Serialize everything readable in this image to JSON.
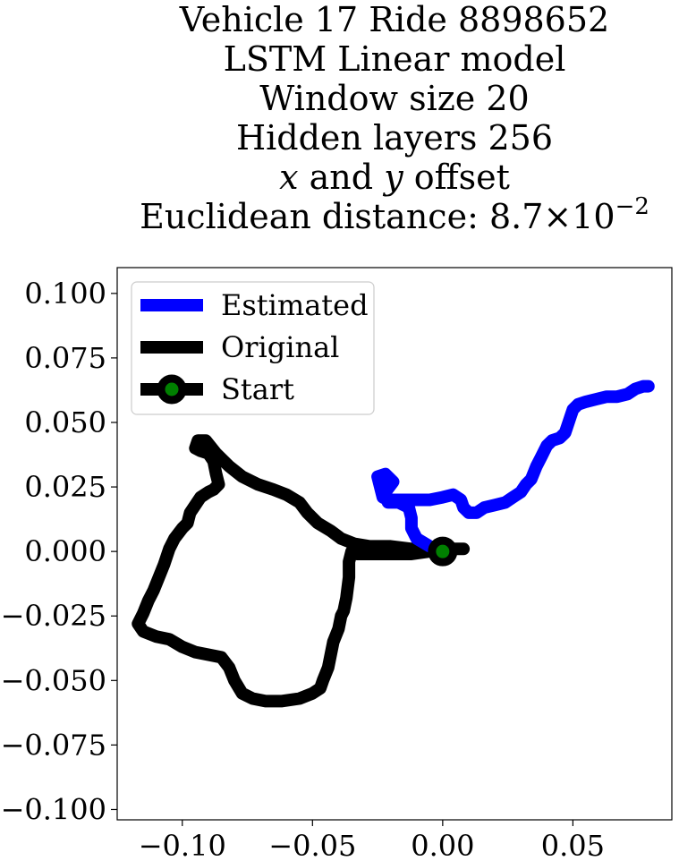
{
  "chart_data": {
    "type": "line",
    "title_lines": {
      "line1": "Vehicle 17 Ride 8898652",
      "line2": "LSTM Linear model",
      "line3": "Window size 20",
      "line4": "Hidden layers 256",
      "line5_x": "x",
      "line5_and": " and ",
      "line5_y": "y",
      "line5_rest": " offset",
      "line6_prefix": "Euclidean distance: 8.7×10",
      "line6_exp": "−2"
    },
    "xlim": [
      -0.125,
      0.088
    ],
    "ylim": [
      -0.104,
      0.11
    ],
    "grid": false,
    "legend_placement": "top-left",
    "x_ticks": [
      -0.1,
      -0.05,
      0.0,
      0.05
    ],
    "x_tick_labels": [
      "−0.10",
      "−0.05",
      "0.00",
      "0.05"
    ],
    "y_ticks": [
      0.1,
      0.075,
      0.05,
      0.025,
      0.0,
      -0.025,
      -0.05,
      -0.075,
      -0.1
    ],
    "y_tick_labels": [
      "0.100",
      "0.075",
      "0.050",
      "0.025",
      "0.000",
      "−0.025",
      "−0.050",
      "−0.075",
      "−0.100"
    ],
    "series": [
      {
        "name": "Estimated",
        "color": "#0000ff",
        "points": [
          [
            0.0,
            0.0
          ],
          [
            -0.005,
            0.002
          ],
          [
            -0.01,
            0.005
          ],
          [
            -0.012,
            0.009
          ],
          [
            -0.012,
            0.013
          ],
          [
            -0.013,
            0.017
          ],
          [
            -0.017,
            0.019
          ],
          [
            -0.021,
            0.019
          ],
          [
            -0.022,
            0.023
          ],
          [
            -0.019,
            0.027
          ],
          [
            -0.022,
            0.03
          ],
          [
            -0.025,
            0.029
          ],
          [
            -0.024,
            0.025
          ],
          [
            -0.023,
            0.021
          ],
          [
            -0.021,
            0.02
          ],
          [
            -0.016,
            0.02
          ],
          [
            -0.01,
            0.02
          ],
          [
            -0.005,
            0.02
          ],
          [
            0.0,
            0.021
          ],
          [
            0.004,
            0.022
          ],
          [
            0.007,
            0.02
          ],
          [
            0.008,
            0.017
          ],
          [
            0.01,
            0.015
          ],
          [
            0.013,
            0.015
          ],
          [
            0.016,
            0.017
          ],
          [
            0.02,
            0.018
          ],
          [
            0.024,
            0.019
          ],
          [
            0.027,
            0.021
          ],
          [
            0.03,
            0.023
          ],
          [
            0.032,
            0.026
          ],
          [
            0.034,
            0.028
          ],
          [
            0.036,
            0.033
          ],
          [
            0.038,
            0.037
          ],
          [
            0.04,
            0.041
          ],
          [
            0.042,
            0.043
          ],
          [
            0.045,
            0.044
          ],
          [
            0.047,
            0.046
          ],
          [
            0.048,
            0.049
          ],
          [
            0.049,
            0.052
          ],
          [
            0.05,
            0.055
          ],
          [
            0.052,
            0.057
          ],
          [
            0.055,
            0.058
          ],
          [
            0.059,
            0.059
          ],
          [
            0.063,
            0.06
          ],
          [
            0.067,
            0.06
          ],
          [
            0.071,
            0.061
          ],
          [
            0.074,
            0.063
          ],
          [
            0.077,
            0.064
          ],
          [
            0.079,
            0.064
          ]
        ]
      },
      {
        "name": "Original",
        "color": "#000000",
        "points": [
          [
            0.008,
            0.001
          ],
          [
            0.002,
            0.001
          ],
          [
            -0.005,
            0.0
          ],
          [
            -0.012,
            -0.001
          ],
          [
            -0.02,
            -0.001
          ],
          [
            -0.027,
            -0.001
          ],
          [
            -0.033,
            -0.001
          ],
          [
            -0.035,
            0.0
          ],
          [
            -0.036,
            -0.004
          ],
          [
            -0.036,
            -0.01
          ],
          [
            -0.037,
            -0.018
          ],
          [
            -0.038,
            -0.023
          ],
          [
            -0.039,
            -0.025
          ],
          [
            -0.04,
            -0.03
          ],
          [
            -0.042,
            -0.035
          ],
          [
            -0.043,
            -0.04
          ],
          [
            -0.044,
            -0.045
          ],
          [
            -0.046,
            -0.05
          ],
          [
            -0.047,
            -0.053
          ],
          [
            -0.05,
            -0.055
          ],
          [
            -0.055,
            -0.057
          ],
          [
            -0.062,
            -0.058
          ],
          [
            -0.068,
            -0.058
          ],
          [
            -0.073,
            -0.057
          ],
          [
            -0.077,
            -0.055
          ],
          [
            -0.08,
            -0.05
          ],
          [
            -0.082,
            -0.045
          ],
          [
            -0.085,
            -0.041
          ],
          [
            -0.09,
            -0.04
          ],
          [
            -0.095,
            -0.039
          ],
          [
            -0.1,
            -0.037
          ],
          [
            -0.105,
            -0.034
          ],
          [
            -0.11,
            -0.033
          ],
          [
            -0.115,
            -0.031
          ],
          [
            -0.117,
            -0.028
          ],
          [
            -0.115,
            -0.024
          ],
          [
            -0.113,
            -0.019
          ],
          [
            -0.111,
            -0.015
          ],
          [
            -0.109,
            -0.01
          ],
          [
            -0.107,
            -0.005
          ],
          [
            -0.105,
            0.001
          ],
          [
            -0.103,
            0.005
          ],
          [
            -0.1,
            0.009
          ],
          [
            -0.098,
            0.011
          ],
          [
            -0.097,
            0.015
          ],
          [
            -0.095,
            0.018
          ],
          [
            -0.093,
            0.021
          ],
          [
            -0.09,
            0.023
          ],
          [
            -0.088,
            0.024
          ],
          [
            -0.086,
            0.026
          ],
          [
            -0.087,
            0.03
          ],
          [
            -0.088,
            0.035
          ],
          [
            -0.09,
            0.038
          ],
          [
            -0.093,
            0.039
          ],
          [
            -0.095,
            0.04
          ],
          [
            -0.094,
            0.043
          ],
          [
            -0.091,
            0.043
          ],
          [
            -0.087,
            0.038
          ],
          [
            -0.082,
            0.033
          ],
          [
            -0.077,
            0.029
          ],
          [
            -0.071,
            0.026
          ],
          [
            -0.065,
            0.024
          ],
          [
            -0.06,
            0.022
          ],
          [
            -0.055,
            0.019
          ],
          [
            -0.052,
            0.015
          ],
          [
            -0.048,
            0.011
          ],
          [
            -0.043,
            0.008
          ],
          [
            -0.039,
            0.005
          ],
          [
            -0.034,
            0.003
          ],
          [
            -0.028,
            0.002
          ],
          [
            -0.02,
            0.002
          ],
          [
            -0.012,
            0.001
          ],
          [
            -0.005,
            0.001
          ],
          [
            0.0,
            0.0
          ]
        ]
      }
    ],
    "start": {
      "name": "Start",
      "x": 0.0,
      "y": 0.0,
      "face_color": "#008000",
      "edge_color": "#000000"
    },
    "legend": [
      {
        "label": "Estimated",
        "color": "#0000ff",
        "marker": false
      },
      {
        "label": "Original",
        "color": "#000000",
        "marker": false
      },
      {
        "label": "Start",
        "color": "#000000",
        "marker": true
      }
    ]
  }
}
